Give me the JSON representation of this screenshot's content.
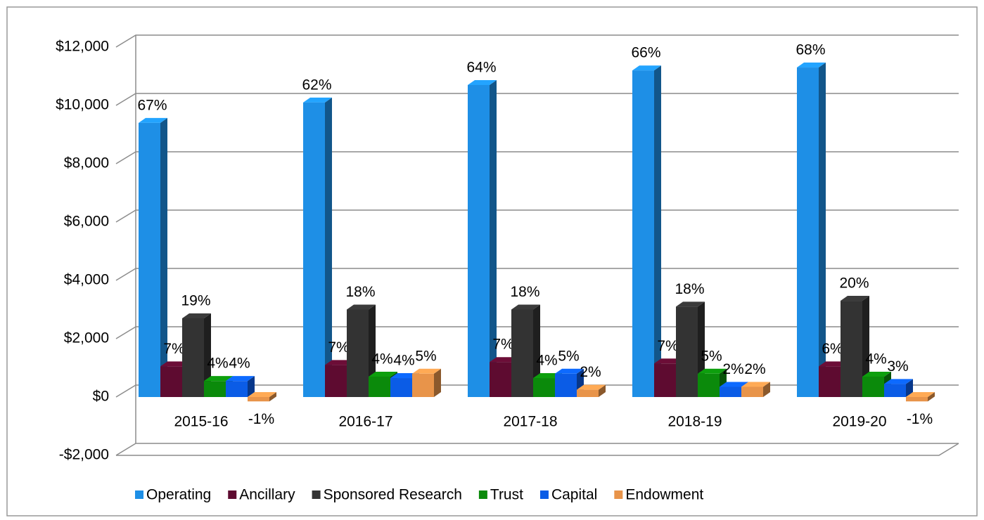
{
  "chart_data": {
    "type": "bar3d",
    "categories": [
      "2015-16",
      "2016-17",
      "2017-18",
      "2018-19",
      "2019-20"
    ],
    "ylim": [
      -2000,
      12000
    ],
    "yticks": [
      {
        "value": -2000,
        "label": "-$2,000"
      },
      {
        "value": 0,
        "label": "$0"
      },
      {
        "value": 2000,
        "label": "$2,000"
      },
      {
        "value": 4000,
        "label": "$4,000"
      },
      {
        "value": 6000,
        "label": "$6,000"
      },
      {
        "value": 8000,
        "label": "$8,000"
      },
      {
        "value": 10000,
        "label": "$10,000"
      },
      {
        "value": 12000,
        "label": "$12,000"
      }
    ],
    "grid": true,
    "legend": "bottom",
    "series": [
      {
        "name": "Operating",
        "color": "#1e8fe6",
        "values": [
          9400,
          10100,
          10700,
          11200,
          11300
        ],
        "labels": [
          "67%",
          "62%",
          "64%",
          "66%",
          "68%"
        ]
      },
      {
        "name": "Ancillary",
        "color": "#5e0b30",
        "values": [
          1050,
          1100,
          1200,
          1150,
          1050
        ],
        "labels": [
          "7%",
          "7%",
          "7%",
          "7%",
          "6%"
        ]
      },
      {
        "name": "Sponsored Research",
        "color": "#333333",
        "values": [
          2700,
          3000,
          3000,
          3100,
          3300
        ],
        "labels": [
          "19%",
          "18%",
          "18%",
          "18%",
          "20%"
        ]
      },
      {
        "name": "Trust",
        "color": "#0b8a0b",
        "values": [
          550,
          700,
          650,
          800,
          700
        ],
        "labels": [
          "4%",
          "4%",
          "4%",
          "5%",
          "4%"
        ]
      },
      {
        "name": "Capital",
        "color": "#0b5ce6",
        "values": [
          550,
          650,
          800,
          350,
          450
        ],
        "labels": [
          "4%",
          "4%",
          "5%",
          "2%",
          "3%"
        ]
      },
      {
        "name": "Endowment",
        "color": "#e8944a",
        "values": [
          -150,
          800,
          250,
          350,
          -150
        ],
        "labels": [
          "-1%",
          "5%",
          "2%",
          "2%",
          "-1%"
        ]
      }
    ]
  }
}
